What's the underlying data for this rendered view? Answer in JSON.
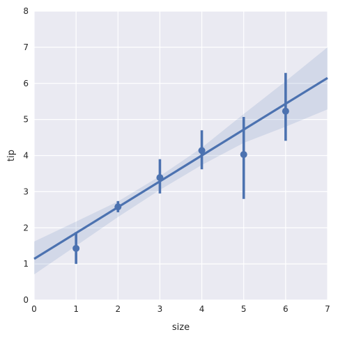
{
  "chart_data": {
    "type": "scatter",
    "xlabel": "size",
    "ylabel": "tip",
    "xlim": [
      0,
      7
    ],
    "ylim": [
      0,
      8
    ],
    "xticks": [
      0,
      1,
      2,
      3,
      4,
      5,
      6,
      7
    ],
    "yticks": [
      0,
      1,
      2,
      3,
      4,
      5,
      6,
      7,
      8
    ],
    "grid": true,
    "style": "seaborn darkgrid",
    "points": [
      {
        "x": 1,
        "y": 1.43,
        "ci": [
          1.0,
          1.88
        ]
      },
      {
        "x": 2,
        "y": 2.58,
        "ci": [
          2.43,
          2.74
        ]
      },
      {
        "x": 3,
        "y": 3.39,
        "ci": [
          2.95,
          3.9
        ]
      },
      {
        "x": 4,
        "y": 4.14,
        "ci": [
          3.62,
          4.7
        ]
      },
      {
        "x": 5,
        "y": 4.03,
        "ci": [
          2.8,
          5.07
        ]
      },
      {
        "x": 6,
        "y": 5.23,
        "ci": [
          4.41,
          6.29
        ]
      }
    ],
    "regression": {
      "x": [
        0,
        1,
        2,
        3,
        4,
        5,
        6,
        7
      ],
      "y": [
        1.14,
        1.86,
        2.57,
        3.29,
        4.0,
        4.72,
        5.43,
        6.15
      ],
      "ci_upper": [
        1.62,
        2.17,
        2.73,
        3.43,
        4.22,
        5.15,
        6.06,
        7.0
      ],
      "ci_lower": [
        0.71,
        1.5,
        2.3,
        3.05,
        3.74,
        4.35,
        4.8,
        5.28
      ]
    },
    "colors": {
      "background": "#eaeaf2",
      "grid": "#ffffff",
      "series": "#4c72b0",
      "band": "#4c72b0"
    }
  }
}
